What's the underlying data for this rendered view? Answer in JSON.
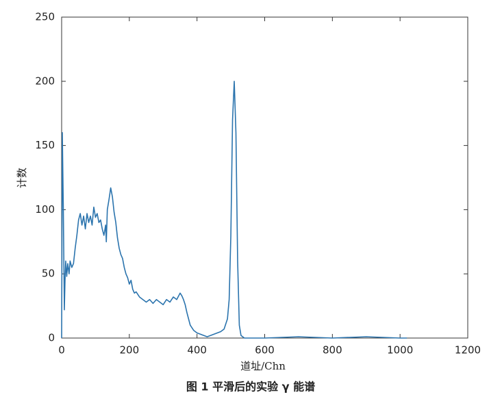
{
  "chart_data": {
    "type": "line",
    "xlabel": "道址/Chn",
    "ylabel": "计数",
    "caption": "图 1 平滑后的实验 γ 能谱",
    "color": "#2a73ad",
    "xlim": [
      0,
      1200
    ],
    "ylim": [
      0,
      250
    ],
    "xticks": [
      0,
      200,
      400,
      600,
      800,
      1000,
      1200
    ],
    "yticks": [
      0,
      50,
      100,
      150,
      200,
      250
    ],
    "x": [
      0,
      2,
      5,
      8,
      10,
      12,
      15,
      18,
      22,
      25,
      30,
      35,
      40,
      45,
      50,
      55,
      60,
      65,
      70,
      75,
      80,
      85,
      90,
      95,
      100,
      105,
      110,
      115,
      120,
      125,
      130,
      132,
      135,
      140,
      145,
      150,
      155,
      160,
      165,
      170,
      175,
      180,
      185,
      190,
      195,
      200,
      205,
      210,
      215,
      220,
      230,
      240,
      250,
      260,
      270,
      280,
      290,
      300,
      310,
      320,
      330,
      340,
      350,
      355,
      360,
      365,
      370,
      375,
      380,
      390,
      400,
      410,
      420,
      430,
      440,
      450,
      460,
      470,
      480,
      490,
      495,
      500,
      505,
      510,
      515,
      520,
      525,
      530,
      540,
      600,
      700,
      800,
      900,
      1000,
      1020
    ],
    "values": [
      0,
      160,
      100,
      22,
      45,
      60,
      48,
      58,
      50,
      60,
      55,
      58,
      70,
      80,
      92,
      97,
      88,
      95,
      85,
      97,
      90,
      95,
      88,
      102,
      94,
      97,
      90,
      92,
      85,
      80,
      88,
      75,
      100,
      108,
      117,
      110,
      98,
      90,
      78,
      70,
      65,
      62,
      55,
      50,
      47,
      42,
      45,
      38,
      35,
      36,
      32,
      30,
      28,
      30,
      27,
      30,
      28,
      26,
      30,
      28,
      32,
      30,
      35,
      33,
      30,
      26,
      20,
      15,
      10,
      6,
      4,
      3,
      2,
      1,
      2,
      3,
      4,
      5,
      7,
      15,
      30,
      80,
      170,
      200,
      160,
      60,
      10,
      2,
      0,
      0,
      1,
      0,
      1,
      0,
      0
    ]
  }
}
